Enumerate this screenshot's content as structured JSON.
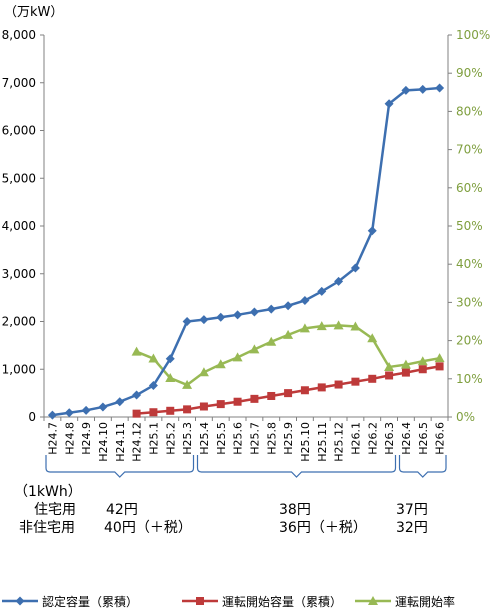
{
  "chart_data": {
    "type": "line",
    "unit_label": "（万kW）",
    "left_axis": {
      "ylim": [
        0,
        8000
      ],
      "ticks": [
        "0",
        "1,000",
        "2,000",
        "3,000",
        "4,000",
        "5,000",
        "6,000",
        "7,000",
        "8,000"
      ]
    },
    "right_axis": {
      "ylim": [
        0,
        100
      ],
      "ticks": [
        "0%",
        "10%",
        "20%",
        "30%",
        "40%",
        "50%",
        "60%",
        "70%",
        "80%",
        "90%",
        "100%"
      ],
      "color": "#7f9f3f"
    },
    "categories": [
      "H24.7",
      "H24.8",
      "H24.9",
      "H24.10",
      "H24.11",
      "H24.12",
      "H25.1",
      "H25.2",
      "H25.3",
      "H25.4",
      "H25.5",
      "H25.6",
      "H25.7",
      "H25.8",
      "H25.9",
      "H25.10",
      "H25.11",
      "H25.12",
      "H26.1",
      "H26.2",
      "H26.3",
      "H26.4",
      "H26.5",
      "H26.6"
    ],
    "series": [
      {
        "name": "認定容量（累積）",
        "axis": "left",
        "color": "#3d6fb0",
        "marker": "diamond",
        "values": [
          40,
          90,
          140,
          210,
          320,
          460,
          660,
          1220,
          2000,
          2040,
          2090,
          2140,
          2200,
          2260,
          2330,
          2440,
          2630,
          2840,
          3120,
          3900,
          6560,
          6840,
          6860,
          6890
        ]
      },
      {
        "name": "運転開始容量（累積）",
        "axis": "left",
        "color": "#be3a3a",
        "marker": "square",
        "values": [
          null,
          null,
          null,
          null,
          null,
          70,
          100,
          130,
          160,
          220,
          270,
          320,
          380,
          440,
          500,
          560,
          620,
          680,
          740,
          800,
          870,
          930,
          1000,
          1060
        ]
      },
      {
        "name": "運転開始率",
        "axis": "right",
        "color": "#98b954",
        "marker": "triangle",
        "values": [
          null,
          null,
          null,
          null,
          null,
          17.1,
          15.3,
          10.2,
          8.4,
          11.7,
          13.8,
          15.6,
          17.7,
          19.7,
          21.5,
          23.2,
          23.8,
          24.0,
          23.7,
          20.6,
          13.1,
          13.7,
          14.6,
          15.4
        ]
      }
    ],
    "price_table": {
      "header": "（1kWh）",
      "rows": [
        {
          "label": "住宅用",
          "prices": [
            "42円",
            "38円",
            "37円"
          ]
        },
        {
          "label": "非住宅用",
          "prices": [
            "40円（＋税）",
            "36円（＋税）",
            "32円"
          ]
        }
      ]
    }
  }
}
